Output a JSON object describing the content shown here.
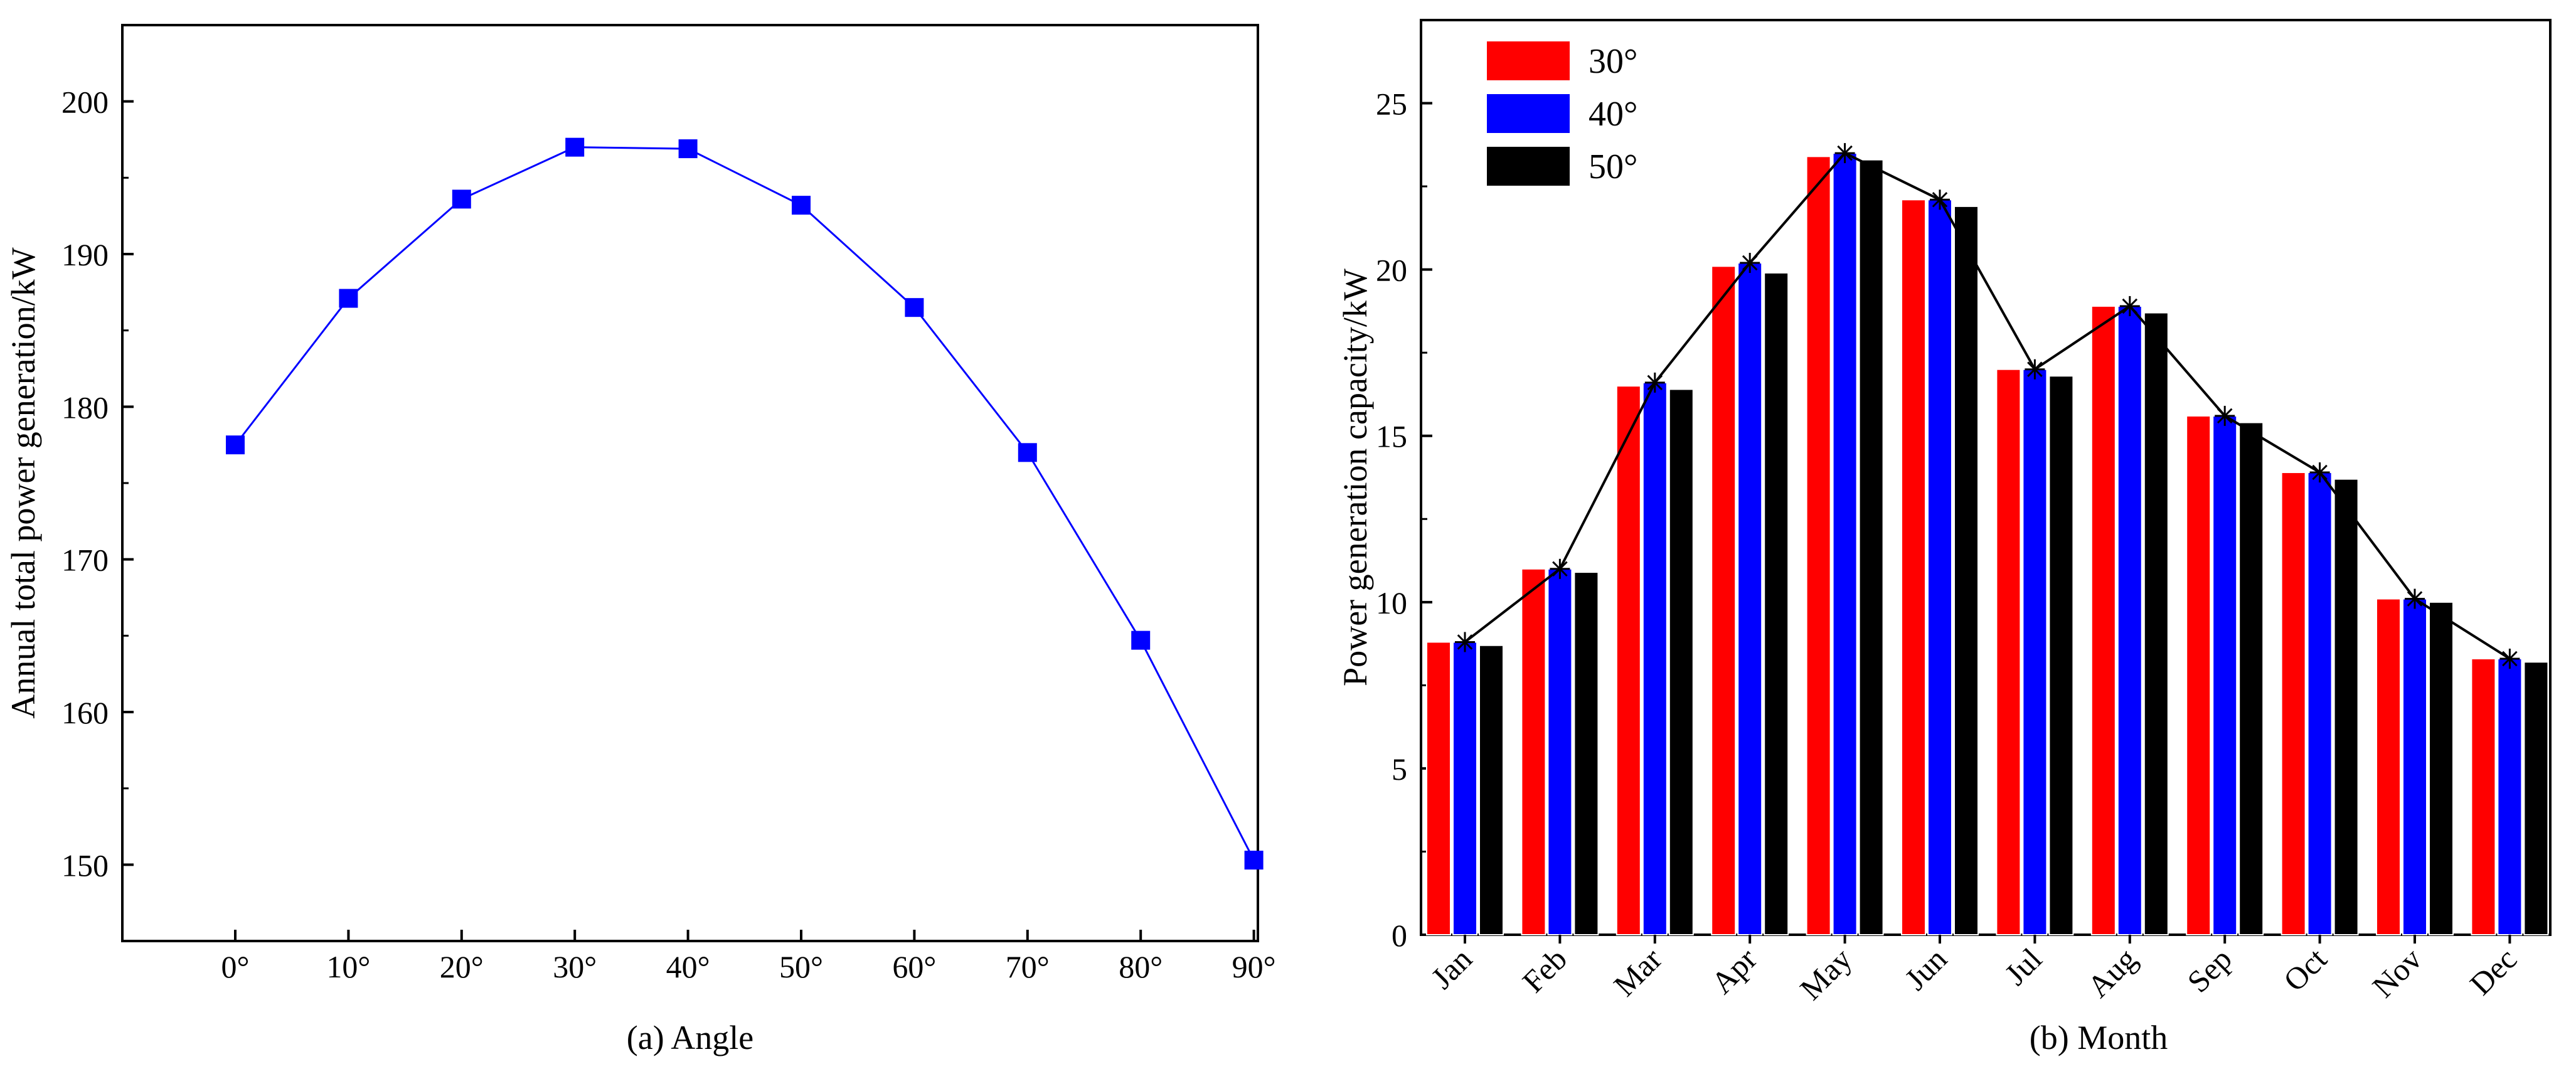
{
  "chart_data": [
    {
      "type": "line",
      "panel": "a",
      "title": "",
      "xlabel": "(a) Angle",
      "ylabel": "Annual total power generation/kW",
      "categories": [
        "0°",
        "10°",
        "20°",
        "30°",
        "40°",
        "50°",
        "60°",
        "70°",
        "80°",
        "90°"
      ],
      "values": [
        177.5,
        187.1,
        193.6,
        197.0,
        196.9,
        193.2,
        186.5,
        177.0,
        164.7,
        150.3
      ],
      "ylim": [
        145,
        205
      ],
      "yticks": [
        150,
        160,
        170,
        180,
        190,
        200
      ],
      "ytick_labels": [
        "150",
        "160",
        "170",
        "180",
        "190",
        "200"
      ],
      "marker": "square",
      "color": "#0000ff",
      "grid": false
    },
    {
      "type": "bar",
      "panel": "b",
      "title": "",
      "xlabel": "(b) Month",
      "ylabel": "Power generation capacity/kW",
      "categories": [
        "Jan",
        "Feb",
        "Mar",
        "Apr",
        "May",
        "Jun",
        "Jul",
        "Aug",
        "Sep",
        "Oct",
        "Nov",
        "Dec"
      ],
      "series": [
        {
          "name": "30°",
          "color": "#ff0000",
          "values": [
            8.8,
            11.0,
            16.5,
            20.1,
            23.4,
            22.1,
            17.0,
            18.9,
            15.6,
            13.9,
            10.1,
            8.3
          ]
        },
        {
          "name": "40°",
          "color": "#0000ff",
          "values": [
            8.8,
            11.0,
            16.6,
            20.2,
            23.5,
            22.1,
            17.0,
            18.9,
            15.6,
            13.9,
            10.1,
            8.3
          ]
        },
        {
          "name": "50°",
          "color": "#000000",
          "values": [
            8.7,
            10.9,
            16.4,
            19.9,
            23.3,
            21.9,
            16.8,
            18.7,
            15.4,
            13.7,
            10.0,
            8.2
          ]
        }
      ],
      "trend_line": {
        "series": "40°",
        "marker": "asterisk",
        "color": "#000000"
      },
      "ylim": [
        0,
        27.5
      ],
      "yticks": [
        0,
        5,
        10,
        15,
        20,
        25
      ],
      "ytick_labels": [
        "0",
        "5",
        "10",
        "15",
        "20",
        "25"
      ],
      "legend_position": "top-left",
      "grid": false
    }
  ]
}
